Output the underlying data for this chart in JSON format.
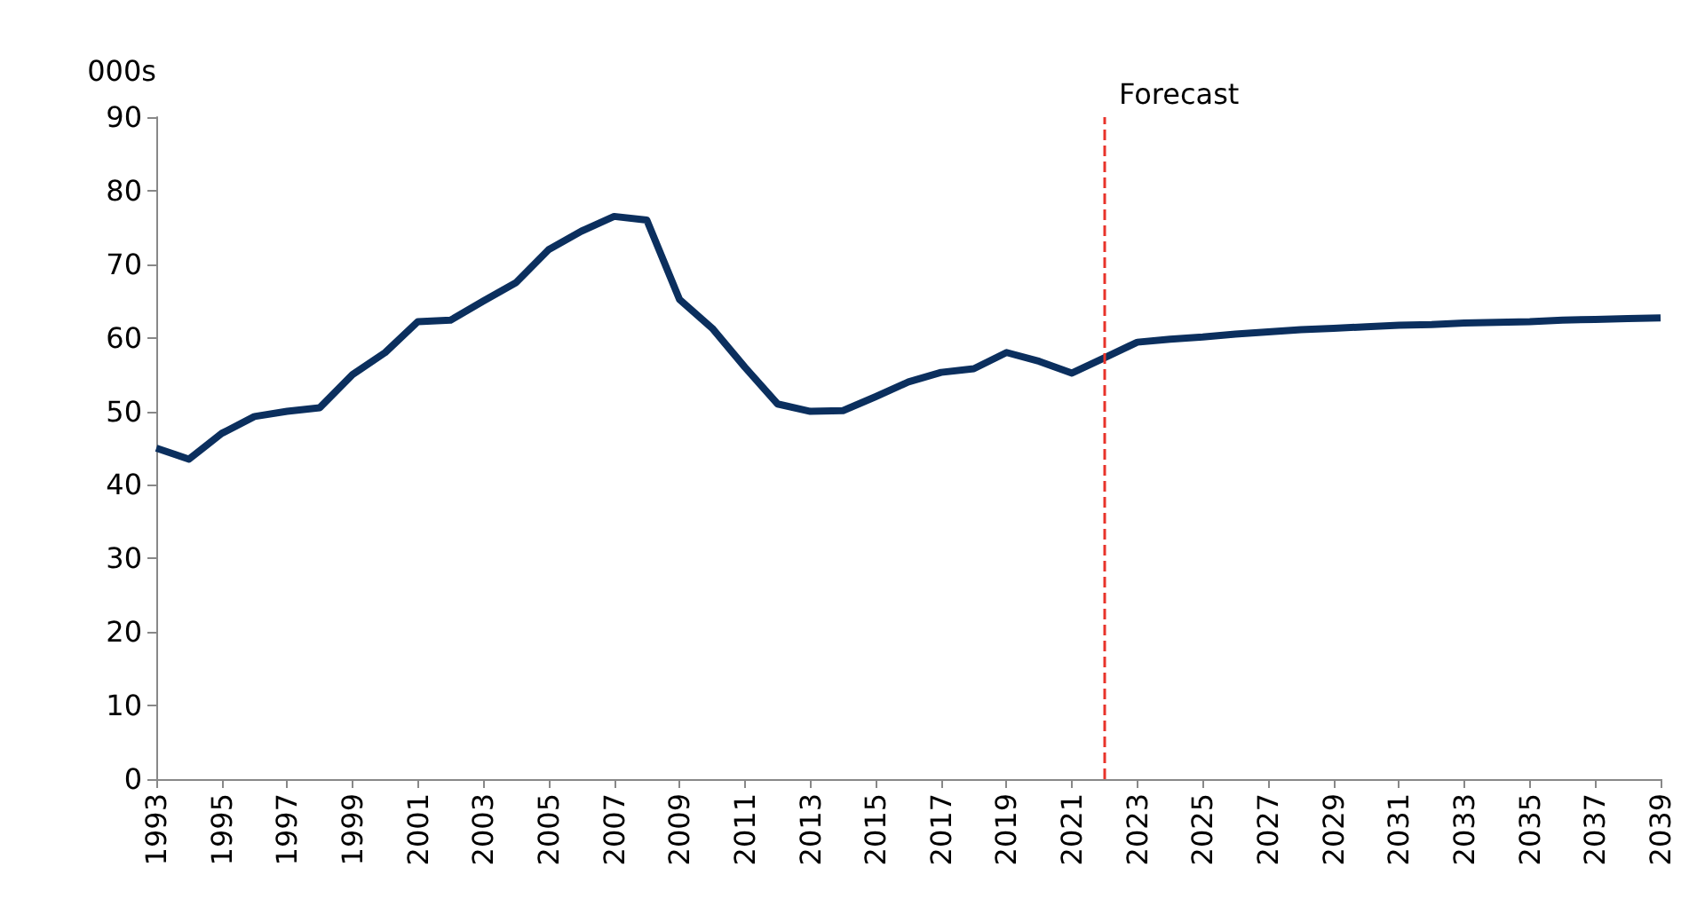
{
  "chart_data": {
    "type": "line",
    "ylabel": "000s",
    "x": [
      1993,
      1994,
      1995,
      1996,
      1997,
      1998,
      1999,
      2000,
      2001,
      2002,
      2003,
      2004,
      2005,
      2006,
      2007,
      2008,
      2009,
      2010,
      2011,
      2012,
      2013,
      2014,
      2015,
      2016,
      2017,
      2018,
      2019,
      2020,
      2021,
      2022,
      2023,
      2024,
      2025,
      2026,
      2027,
      2028,
      2029,
      2030,
      2031,
      2032,
      2033,
      2034,
      2035,
      2036,
      2037,
      2038,
      2039
    ],
    "series": [
      {
        "color": "#0b2f5e",
        "values": [
          45,
          43.5,
          47,
          49.3,
          50,
          50.5,
          55,
          58,
          62.2,
          62.4,
          65,
          67.5,
          72,
          74.5,
          76.5,
          76,
          65.2,
          61.3,
          56,
          51,
          50,
          50.1,
          52,
          54,
          55.3,
          55.8,
          58,
          56.8,
          55.2,
          57.3,
          59.4,
          59.8,
          60.1,
          60.5,
          60.8,
          61.1,
          61.3,
          61.5,
          61.7,
          61.8,
          62,
          62.1,
          62.2,
          62.4,
          62.5,
          62.6,
          62.7
        ]
      }
    ],
    "xlim": [
      1993,
      2039
    ],
    "xticks": [
      1993,
      1995,
      1997,
      1999,
      2001,
      2003,
      2005,
      2007,
      2009,
      2011,
      2013,
      2015,
      2017,
      2019,
      2021,
      2023,
      2025,
      2027,
      2029,
      2031,
      2033,
      2035,
      2037,
      2039
    ],
    "ylim": [
      0,
      90
    ],
    "yticks": [
      0,
      10,
      20,
      30,
      40,
      50,
      60,
      70,
      80,
      90
    ],
    "ref_lines": [
      {
        "axis": "x",
        "value": 2022,
        "label": "Forecast",
        "color": "#e8332a",
        "line_style": "dashed"
      }
    ],
    "grid": false,
    "marker": "none",
    "line_style": "solid"
  }
}
